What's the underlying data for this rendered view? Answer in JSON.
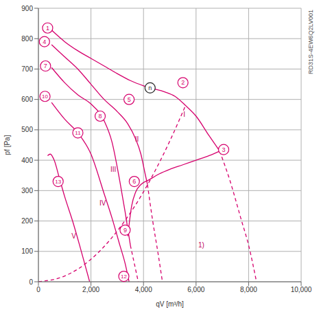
{
  "chart_data": {
    "type": "line",
    "title": "RD31S-4EW6Q2LV001",
    "x_label": "qV [m³/h]",
    "y_label": "pf [Pa]",
    "xlim": [
      0,
      10000
    ],
    "xticks": [
      0,
      {
        "value": 2000,
        "label": "2,000"
      },
      {
        "value": 4000,
        "label": "4,000"
      },
      {
        "value": 6000,
        "label": "6,000"
      },
      {
        "value": 8000,
        "label": "8,000"
      },
      {
        "value": 10000,
        "label": "10,000"
      }
    ],
    "ylim": [
      0,
      900
    ],
    "yticks": [
      0,
      100,
      200,
      300,
      400,
      500,
      600,
      700,
      800,
      900
    ],
    "grid": true,
    "series": [
      {
        "color": "#d6006d",
        "line_style": "solid",
        "x": [
          500,
          1000,
          1500,
          2000,
          2500,
          3000,
          3500,
          4000,
          4250,
          4800,
          5200,
          5600,
          6000,
          6500,
          6900
        ],
        "values": [
          828,
          790,
          760,
          735,
          710,
          685,
          662,
          645,
          638,
          625,
          610,
          580,
          545,
          480,
          430
        ]
      },
      {
        "color": "#d6006d",
        "line_style": "dashed",
        "x": [
          6900,
          7300,
          7700,
          8000,
          8300
        ],
        "values": [
          430,
          330,
          210,
          120,
          0
        ]
      },
      {
        "color": "#d6006d",
        "line_style": "solid",
        "x": [
          500,
          1000,
          1500,
          2000,
          2500,
          3000,
          3400,
          3700,
          3900,
          4050,
          4150
        ],
        "values": [
          780,
          740,
          700,
          650,
          600,
          560,
          520,
          470,
          420,
          360,
          320
        ]
      },
      {
        "color": "#d6006d",
        "line_style": "dashed",
        "x": [
          4150,
          4350,
          4550,
          4720
        ],
        "values": [
          320,
          200,
          95,
          0
        ]
      },
      {
        "color": "#d6006d",
        "line_style": "solid",
        "x": [
          500,
          1000,
          1500,
          2000,
          2500,
          2800,
          3100,
          3300,
          3500
        ],
        "values": [
          705,
          655,
          615,
          585,
          530,
          460,
          330,
          230,
          120
        ]
      },
      {
        "color": "#d6006d",
        "line_style": "dashed",
        "x": [
          3500,
          3650,
          3800
        ],
        "values": [
          120,
          60,
          0
        ]
      },
      {
        "color": "#d6006d",
        "line_style": "solid",
        "x": [
          500,
          1000,
          1500,
          2000,
          2500,
          2800,
          3100,
          3300,
          3450
        ],
        "values": [
          590,
          535,
          490,
          420,
          290,
          210,
          120,
          60,
          0
        ]
      },
      {
        "color": "#d6006d",
        "line_style": "solid",
        "x": [
          350,
          450,
          600,
          800,
          1000,
          1300,
          1600,
          1950
        ],
        "values": [
          415,
          420,
          400,
          340,
          280,
          200,
          110,
          0
        ]
      },
      {
        "color": "#d6006d",
        "line_style": "dashed",
        "x": [
          0,
          1000,
          2000,
          3000,
          4000,
          4500,
          5000,
          5600
        ],
        "values": [
          0,
          19,
          74,
          167,
          296,
          375,
          463,
          580
        ]
      },
      {
        "color": "#d6006d",
        "line_style": "solid",
        "x": [
          3400,
          3550,
          3700,
          3900,
          4200,
          4600,
          5000,
          5500,
          6000,
          6500,
          6900
        ],
        "values": [
          150,
          250,
          295,
          320,
          335,
          355,
          370,
          385,
          400,
          415,
          430
        ]
      }
    ],
    "annotations": [
      {
        "text": "1",
        "x": 350,
        "y": 835,
        "marker": "circle"
      },
      {
        "text": "2",
        "x": 5500,
        "y": 655,
        "marker": "circle"
      },
      {
        "text": "3",
        "x": 7050,
        "y": 435,
        "marker": "circle"
      },
      {
        "text": "4",
        "x": 230,
        "y": 790,
        "marker": "circle"
      },
      {
        "text": "5",
        "x": 3450,
        "y": 600,
        "marker": "circle"
      },
      {
        "text": "6",
        "x": 3650,
        "y": 330,
        "marker": "circle"
      },
      {
        "text": "7",
        "x": 270,
        "y": 710,
        "marker": "circle"
      },
      {
        "text": "8",
        "x": 2350,
        "y": 545,
        "marker": "circle"
      },
      {
        "text": "9",
        "x": 3300,
        "y": 170,
        "marker": "circle"
      },
      {
        "text": "10",
        "x": 250,
        "y": 610,
        "marker": "circle"
      },
      {
        "text": "11",
        "x": 1500,
        "y": 490,
        "marker": "circle"
      },
      {
        "text": "12",
        "x": 3250,
        "y": 18,
        "marker": "circle"
      },
      {
        "text": "13",
        "x": 750,
        "y": 330,
        "marker": "circle"
      },
      {
        "text": "n",
        "x": 4250,
        "y": 638,
        "marker": "circle"
      },
      {
        "text": "I",
        "x": 5550,
        "y": 550
      },
      {
        "text": "II",
        "x": 3750,
        "y": 470
      },
      {
        "text": "III",
        "x": 2850,
        "y": 370
      },
      {
        "text": "IV",
        "x": 2450,
        "y": 260
      },
      {
        "text": "V",
        "x": 1350,
        "y": 150
      },
      {
        "text": "1)",
        "x": 6200,
        "y": 120
      }
    ]
  }
}
